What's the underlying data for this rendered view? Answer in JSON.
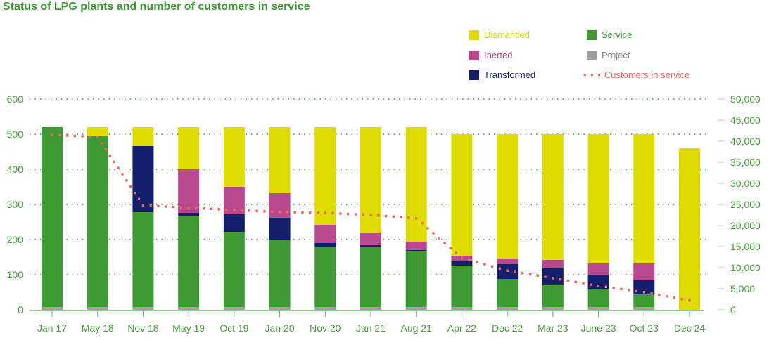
{
  "chart_data": {
    "type": "bar",
    "stacked": true,
    "title": "Status of LPG plants and number of customers in service",
    "xlabel": "",
    "ylabel": "",
    "ylim": [
      0,
      600
    ],
    "y2lim": [
      0,
      50000
    ],
    "yticks": [
      0,
      100,
      200,
      300,
      400,
      500,
      600
    ],
    "y2ticks": [
      0,
      5000,
      10000,
      15000,
      20000,
      25000,
      30000,
      35000,
      40000,
      45000,
      50000
    ],
    "ytick_labels": [
      "0",
      "100",
      "200",
      "300",
      "400",
      "500",
      "600"
    ],
    "y2tick_labels": [
      "0",
      "5,000",
      "10,000",
      "15,000",
      "20,000",
      "25,000",
      "30,000",
      "35,000",
      "40,000",
      "45,000",
      "50,000"
    ],
    "grid": true,
    "legend_position": "top-right",
    "categories": [
      "Jan 17",
      "May 18",
      "Nov 18",
      "May 19",
      "Oct 19",
      "Jan 20",
      "Nov 20",
      "Jan 21",
      "Aug 21",
      "Apr 22",
      "Dec 22",
      "Mar 23",
      "June 23",
      "Oct 23",
      "Dec 24"
    ],
    "series": [
      {
        "name": "Project",
        "color": "#9d9d9c",
        "values": [
          8,
          8,
          8,
          8,
          8,
          8,
          8,
          8,
          8,
          8,
          8,
          8,
          8,
          8,
          0
        ]
      },
      {
        "name": "Service",
        "color": "#3f9a36",
        "values": [
          512,
          487,
          270,
          258,
          214,
          192,
          172,
          170,
          158,
          118,
          80,
          62,
          52,
          36,
          0
        ]
      },
      {
        "name": "Transformed",
        "color": "#131f6b",
        "values": [
          0,
          0,
          188,
          10,
          50,
          62,
          10,
          6,
          4,
          12,
          42,
          48,
          40,
          40,
          0
        ]
      },
      {
        "name": "Inerted",
        "color": "#b9488f",
        "values": [
          0,
          0,
          0,
          124,
          78,
          70,
          52,
          36,
          24,
          16,
          16,
          24,
          32,
          48,
          0
        ]
      },
      {
        "name": "Dismantled",
        "color": "#dfdd00",
        "values": [
          0,
          25,
          54,
          120,
          170,
          188,
          278,
          300,
          326,
          346,
          354,
          358,
          368,
          368,
          460
        ]
      }
    ],
    "line_series": {
      "name": "Customers in service",
      "color": "#e8685c",
      "axis": "right",
      "style": "dotted",
      "values": [
        41500,
        41000,
        24800,
        24200,
        23700,
        23200,
        23000,
        22500,
        21700,
        12300,
        9300,
        7500,
        5700,
        4200,
        2200
      ]
    }
  },
  "legend": [
    {
      "label": "Dismantled",
      "color": "#dfdd00",
      "text_color": "#d8d400",
      "kind": "swatch"
    },
    {
      "label": "Service",
      "color": "#3f9a36",
      "text_color": "#3f9a36",
      "kind": "swatch"
    },
    {
      "label": "Inerted",
      "color": "#b9488f",
      "text_color": "#b9488f",
      "kind": "swatch"
    },
    {
      "label": "Project",
      "color": "#9d9d9c",
      "text_color": "#8a8a8a",
      "kind": "swatch"
    },
    {
      "label": "Transformed",
      "color": "#131f6b",
      "text_color": "#131f6b",
      "kind": "swatch"
    },
    {
      "label": "Customers in service",
      "color": "#e8685c",
      "text_color": "#e8685c",
      "kind": "dots",
      "glyph": "• • •"
    }
  ]
}
